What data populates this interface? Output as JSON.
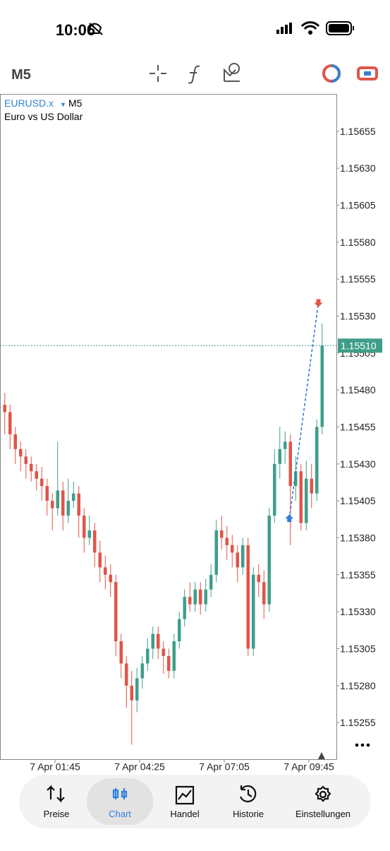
{
  "status_bar": {
    "time": "10:06"
  },
  "header": {
    "timeframe": "M5"
  },
  "chart_data": {
    "type": "candlestick",
    "symbol": "EURUSD.x",
    "timeframe": "M5",
    "description": "Euro vs US Dollar",
    "up_color": "#3f9e8a",
    "down_color": "#e0544a",
    "x": [
      10,
      20,
      30,
      40,
      50,
      60,
      70,
      80,
      90,
      100,
      110,
      120,
      130,
      140,
      150,
      160,
      170,
      180,
      190,
      200,
      210,
      220,
      230,
      240,
      250,
      260,
      270,
      280,
      290,
      300,
      310,
      320,
      330,
      340,
      350,
      360,
      370,
      380,
      390,
      400,
      410,
      420,
      430,
      440,
      450,
      460,
      470,
      480,
      490,
      500,
      510,
      520,
      530,
      540,
      550,
      560,
      570,
      580,
      590,
      600,
      610
    ],
    "open": [
      1.1547,
      1.15465,
      1.1545,
      1.1544,
      1.15435,
      1.1543,
      1.15425,
      1.1542,
      1.15415,
      1.15405,
      1.154,
      1.15412,
      1.15395,
      1.15405,
      1.1541,
      1.15395,
      1.1538,
      1.15385,
      1.1537,
      1.1536,
      1.15355,
      1.1535,
      1.1531,
      1.15295,
      1.1528,
      1.1527,
      1.15285,
      1.15295,
      1.15305,
      1.15315,
      1.15305,
      1.153,
      1.1529,
      1.1531,
      1.15325,
      1.1534,
      1.15335,
      1.15345,
      1.15335,
      1.15345,
      1.15355,
      1.15385,
      1.1538,
      1.15375,
      1.1537,
      1.1536,
      1.15375,
      1.15305,
      1.15355,
      1.1535,
      1.15335,
      1.15395,
      1.1543,
      1.1544,
      1.15445,
      1.15415,
      1.15425,
      1.1539,
      1.1542,
      1.1541,
      1.15455
    ],
    "high": [
      1.15478,
      1.1547,
      1.15455,
      1.15445,
      1.1544,
      1.15435,
      1.1543,
      1.15428,
      1.1542,
      1.1541,
      1.15445,
      1.15418,
      1.1542,
      1.15418,
      1.15415,
      1.154,
      1.15395,
      1.1539,
      1.15378,
      1.15368,
      1.15362,
      1.15355,
      1.15315,
      1.153,
      1.1529,
      1.15292,
      1.153,
      1.15312,
      1.1532,
      1.1532,
      1.1531,
      1.15305,
      1.15315,
      1.1533,
      1.15345,
      1.1535,
      1.1535,
      1.1535,
      1.15352,
      1.15362,
      1.15392,
      1.15395,
      1.15388,
      1.15382,
      1.15375,
      1.1538,
      1.1538,
      1.1536,
      1.15362,
      1.15358,
      1.154,
      1.1544,
      1.15455,
      1.15452,
      1.1545,
      1.15435,
      1.1543,
      1.15432,
      1.1543,
      1.1546,
      1.15525
    ],
    "low": [
      1.1545,
      1.1544,
      1.1543,
      1.15425,
      1.1542,
      1.15418,
      1.15412,
      1.15405,
      1.15395,
      1.15385,
      1.15395,
      1.15385,
      1.1539,
      1.154,
      1.1538,
      1.1537,
      1.15375,
      1.1536,
      1.1535,
      1.15345,
      1.1534,
      1.153,
      1.15285,
      1.15265,
      1.1524,
      1.15262,
      1.15278,
      1.1529,
      1.15298,
      1.15298,
      1.15288,
      1.15285,
      1.15285,
      1.15305,
      1.1532,
      1.1533,
      1.1533,
      1.15328,
      1.1533,
      1.1534,
      1.1535,
      1.15372,
      1.15365,
      1.1536,
      1.1535,
      1.15355,
      1.153,
      1.153,
      1.1534,
      1.15325,
      1.1533,
      1.1539,
      1.1542,
      1.1543,
      1.15375,
      1.15405,
      1.15385,
      1.15385,
      1.154,
      1.15405,
      1.1545
    ],
    "close": [
      1.15465,
      1.1545,
      1.1544,
      1.15435,
      1.1543,
      1.15425,
      1.1542,
      1.15415,
      1.15405,
      1.154,
      1.15412,
      1.15395,
      1.15405,
      1.1541,
      1.15395,
      1.1538,
      1.15385,
      1.1537,
      1.1536,
      1.15355,
      1.1535,
      1.1531,
      1.15295,
      1.1528,
      1.1527,
      1.15285,
      1.15295,
      1.15305,
      1.15315,
      1.15305,
      1.153,
      1.1529,
      1.1531,
      1.15325,
      1.1534,
      1.15335,
      1.15345,
      1.15335,
      1.15345,
      1.15355,
      1.15385,
      1.1538,
      1.15375,
      1.1537,
      1.1536,
      1.15375,
      1.15305,
      1.15355,
      1.1535,
      1.15335,
      1.15395,
      1.1543,
      1.1544,
      1.15445,
      1.15415,
      1.15425,
      1.1539,
      1.1542,
      1.1541,
      1.15455,
      1.1551
    ],
    "xlim": [
      1,
      637
    ],
    "ylim": [
      1.1523,
      1.1568
    ],
    "xticks": [
      {
        "value": 105,
        "label": "7 Apr 01:45"
      },
      {
        "value": 265,
        "label": "7 Apr 04:25"
      },
      {
        "value": 425,
        "label": "7 Apr 07:05"
      },
      {
        "value": 585,
        "label": "7 Apr 09:45"
      }
    ],
    "yticks": [
      1.15255,
      {
        "value": 1.1528,
        "label": "1.15280"
      },
      1.15305,
      {
        "value": 1.1533,
        "label": "1.15330"
      },
      1.15355,
      {
        "value": 1.1538,
        "label": "1.15380"
      },
      1.15405,
      {
        "value": 1.1543,
        "label": "1.15430"
      },
      1.15455,
      {
        "value": 1.1548,
        "label": "1.15480"
      },
      1.15505,
      {
        "value": 1.1553,
        "label": "1.15530"
      },
      1.15555,
      {
        "value": 1.1558,
        "label": "1.15580"
      },
      1.15605,
      {
        "value": 1.1563,
        "label": "1.15630"
      },
      1.15655
    ],
    "current_price": {
      "value": 1.1551,
      "label": "1.15510"
    },
    "trade": {
      "buy_x": 548,
      "buy_price": 1.15393,
      "sell_x": 603,
      "sell_price": 1.15539
    }
  },
  "tab_bar": {
    "tabs": [
      "Preise",
      "Chart",
      "Handel",
      "Historie",
      "Einstellungen"
    ],
    "selected": 1
  }
}
